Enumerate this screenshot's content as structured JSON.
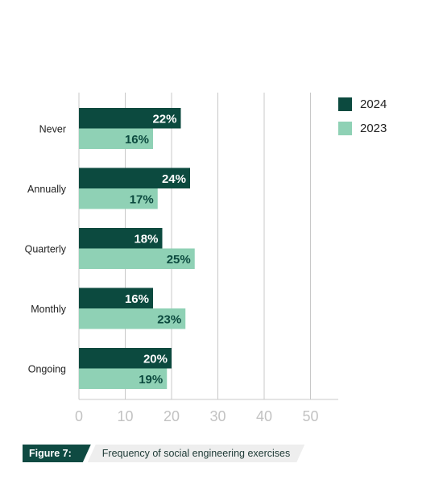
{
  "chart_data": {
    "type": "bar",
    "orientation": "horizontal",
    "categories": [
      "Never",
      "Annually",
      "Quarterly",
      "Monthly",
      "Ongoing"
    ],
    "series": [
      {
        "name": "2024",
        "values": [
          22,
          24,
          18,
          16,
          20
        ],
        "labels": [
          "22%",
          "24%",
          "18%",
          "16%",
          "20%"
        ],
        "color": "#0c4a3f"
      },
      {
        "name": "2023",
        "values": [
          16,
          17,
          25,
          23,
          19
        ],
        "labels": [
          "16%",
          "17%",
          "25%",
          "23%",
          "19%"
        ],
        "color": "#8fd1b5"
      }
    ],
    "xlim": [
      0,
      56
    ],
    "xticks": [
      0,
      10,
      20,
      30,
      40,
      50
    ],
    "xtick_labels": [
      "0",
      "10",
      "20",
      "30",
      "40",
      "50"
    ],
    "grid": true,
    "legend_position": "top-right"
  },
  "caption": {
    "figure_label": "Figure 7:",
    "title": "Frequency of social engineering exercises"
  }
}
